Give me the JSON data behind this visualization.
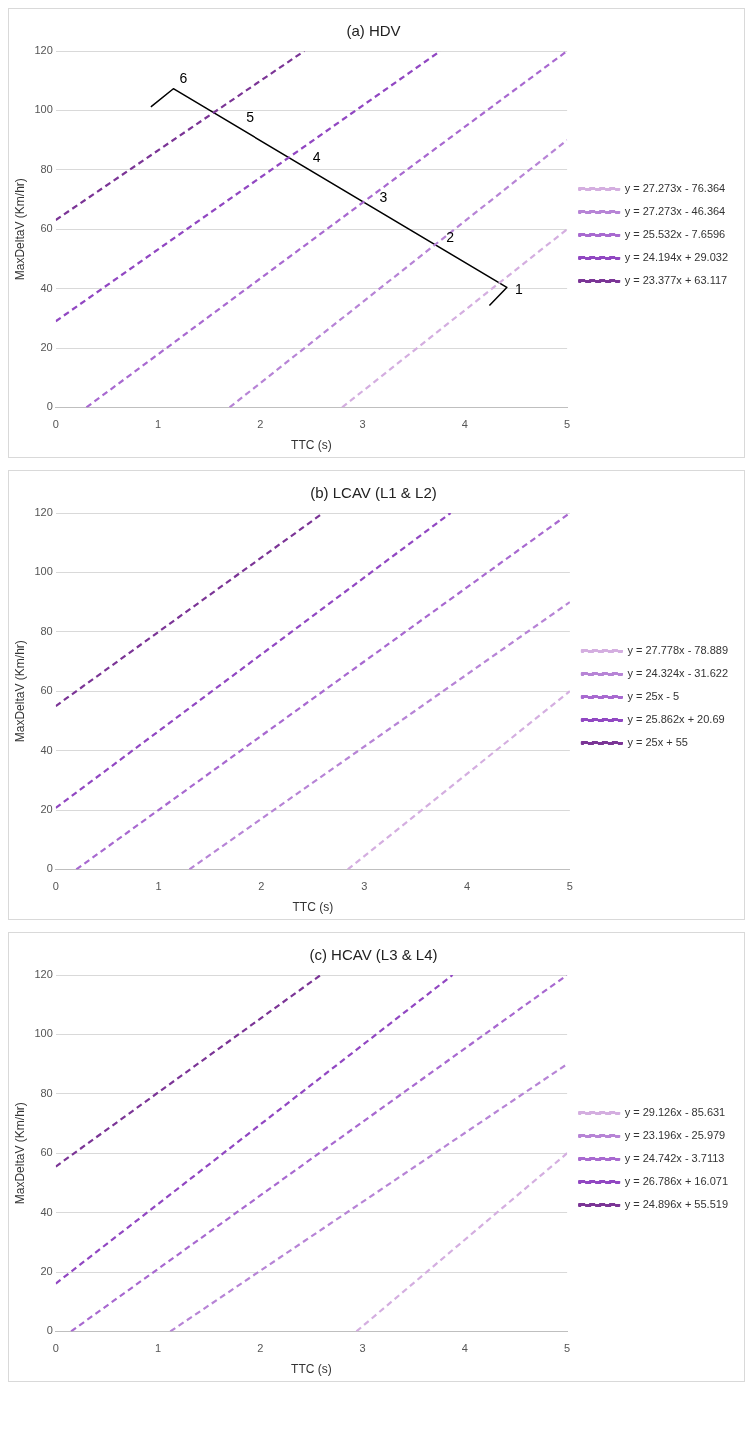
{
  "chart_data": [
    {
      "type": "line",
      "title": "(a) HDV",
      "xlabel": "TTC (s)",
      "ylabel": "MaxDeltaV (Km/hr)",
      "xlim": [
        0,
        5
      ],
      "xticks": [
        0,
        1,
        2,
        3,
        4,
        5
      ],
      "ylim": [
        0,
        120
      ],
      "yticks": [
        0,
        20,
        40,
        60,
        80,
        100,
        120
      ],
      "grid": "y",
      "legend": "right",
      "marker": "none",
      "line_style": "dashed",
      "series": [
        {
          "name": "y = 27.273x - 76.364",
          "color": "#d4aee0",
          "x": [
            2.8,
            5
          ],
          "values": [
            0,
            60
          ]
        },
        {
          "name": "y = 27.273x - 46.364",
          "color": "#b784d6",
          "x": [
            1.7,
            5
          ],
          "values": [
            0,
            90
          ]
        },
        {
          "name": "y = 25.532x - 7.6596",
          "color": "#a869d0",
          "x": [
            0.3,
            5
          ],
          "values": [
            0,
            120
          ]
        },
        {
          "name": "y = 24.194x + 29.032",
          "color": "#9147c2",
          "x": [
            0,
            3.76
          ],
          "values": [
            29,
            120
          ]
        },
        {
          "name": "y = 23.377x + 63.117",
          "color": "#7b3596",
          "x": [
            0,
            2.43
          ],
          "values": [
            63.1,
            120
          ]
        },
        {
          "color": "#000000",
          "line_style": "solid",
          "x": [
            4.24,
            4.41,
            1.15,
            0.93
          ],
          "values": [
            34.3,
            40.4,
            107.3,
            101.2
          ]
        }
      ],
      "annotations": [
        "1",
        "2",
        "3",
        "4",
        "5",
        "6"
      ]
    },
    {
      "type": "line",
      "title": "(b) LCAV (L1 & L2)",
      "xlabel": "TTC (s)",
      "ylabel": "MaxDeltaV (Km/hr)",
      "xlim": [
        0,
        5
      ],
      "xticks": [
        0,
        1,
        2,
        3,
        4,
        5
      ],
      "ylim": [
        0,
        120
      ],
      "yticks": [
        0,
        20,
        40,
        60,
        80,
        100,
        120
      ],
      "grid": "y",
      "legend": "right",
      "marker": "none",
      "line_style": "dashed",
      "series": [
        {
          "name": "y = 27.778x - 78.889",
          "color": "#d4aee0",
          "x": [
            2.84,
            5
          ],
          "values": [
            0,
            60
          ]
        },
        {
          "name": "y = 24.324x - 31.622",
          "color": "#b784d6",
          "x": [
            1.3,
            5
          ],
          "values": [
            0,
            90
          ]
        },
        {
          "name": "y = 25x - 5",
          "color": "#a869d0",
          "x": [
            0.2,
            5
          ],
          "values": [
            0,
            120
          ]
        },
        {
          "name": "y = 25.862x + 20.69",
          "color": "#9147c2",
          "x": [
            0,
            3.84
          ],
          "values": [
            20.7,
            120
          ]
        },
        {
          "name": "y = 25x + 55",
          "color": "#7b3596",
          "x": [
            0,
            2.6
          ],
          "values": [
            55,
            120
          ]
        }
      ]
    },
    {
      "type": "line",
      "title": "(c) HCAV (L3 & L4)",
      "xlabel": "TTC (s)",
      "ylabel": "MaxDeltaV (Km/hr)",
      "xlim": [
        0,
        5
      ],
      "xticks": [
        0,
        1,
        2,
        3,
        4,
        5
      ],
      "ylim": [
        0,
        120
      ],
      "yticks": [
        0,
        20,
        40,
        60,
        80,
        100,
        120
      ],
      "grid": "y",
      "legend": "right",
      "marker": "none",
      "line_style": "dashed",
      "series": [
        {
          "name": "y = 29.126x - 85.631",
          "color": "#d4aee0",
          "x": [
            2.94,
            5
          ],
          "values": [
            0,
            60
          ]
        },
        {
          "name": "y = 23.196x - 25.979",
          "color": "#b784d6",
          "x": [
            1.12,
            5
          ],
          "values": [
            0,
            90
          ]
        },
        {
          "name": "y = 24.742x - 3.7113",
          "color": "#a869d0",
          "x": [
            0.15,
            5
          ],
          "values": [
            0,
            120
          ]
        },
        {
          "name": "y = 26.786x + 16.071",
          "color": "#9147c2",
          "x": [
            0,
            3.88
          ],
          "values": [
            16.1,
            120
          ]
        },
        {
          "name": "y = 24.896x + 55.519",
          "color": "#7b3596",
          "x": [
            0,
            2.59
          ],
          "values": [
            55.5,
            120
          ]
        }
      ]
    }
  ]
}
